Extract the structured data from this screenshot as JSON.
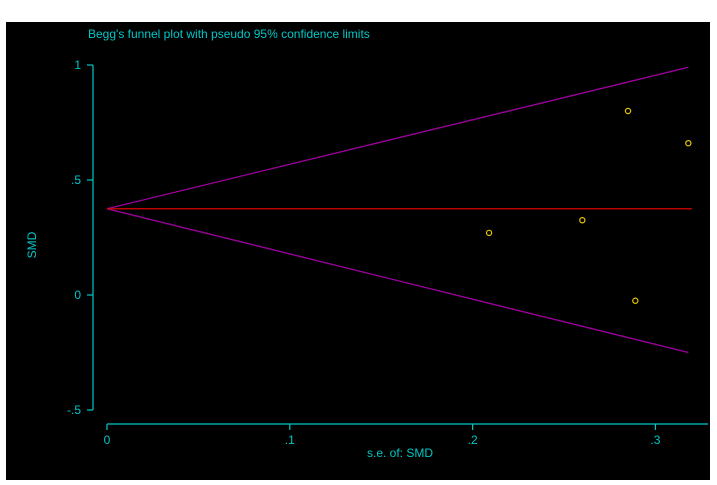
{
  "colors": {
    "axis": "#00c8c8",
    "pseudo_ci_lines": "#a000a0",
    "pooled_estimate_line": "#dd0000",
    "points": "#e8c800",
    "background": "#000000"
  },
  "chart_data": {
    "type": "scatter",
    "title": "Begg's funnel plot with pseudo 95% confidence limits",
    "xlabel": "s.e. of: SMD",
    "ylabel": "SMD",
    "xlim": [
      0,
      0.32
    ],
    "ylim": [
      -0.5,
      1
    ],
    "x_ticks": [
      {
        "value": 0,
        "label": "0"
      },
      {
        "value": 0.1,
        "label": ".1"
      },
      {
        "value": 0.2,
        "label": ".2"
      },
      {
        "value": 0.3,
        "label": ".3"
      }
    ],
    "y_ticks": [
      {
        "value": 1,
        "label": "1"
      },
      {
        "value": 0.5,
        "label": ".5"
      },
      {
        "value": 0,
        "label": "0"
      },
      {
        "value": -0.5,
        "label": "-.5"
      }
    ],
    "grid": false,
    "legend": "none",
    "pooled_estimate": 0.375,
    "ci_upper": {
      "x": [
        0,
        0.318
      ],
      "y": [
        0.375,
        0.99
      ]
    },
    "ci_lower": {
      "x": [
        0,
        0.318
      ],
      "y": [
        0.375,
        -0.25
      ]
    },
    "points": [
      {
        "x": 0.209,
        "y": 0.27
      },
      {
        "x": 0.26,
        "y": 0.325
      },
      {
        "x": 0.285,
        "y": 0.8
      },
      {
        "x": 0.289,
        "y": -0.025
      },
      {
        "x": 0.318,
        "y": 0.66
      }
    ]
  }
}
